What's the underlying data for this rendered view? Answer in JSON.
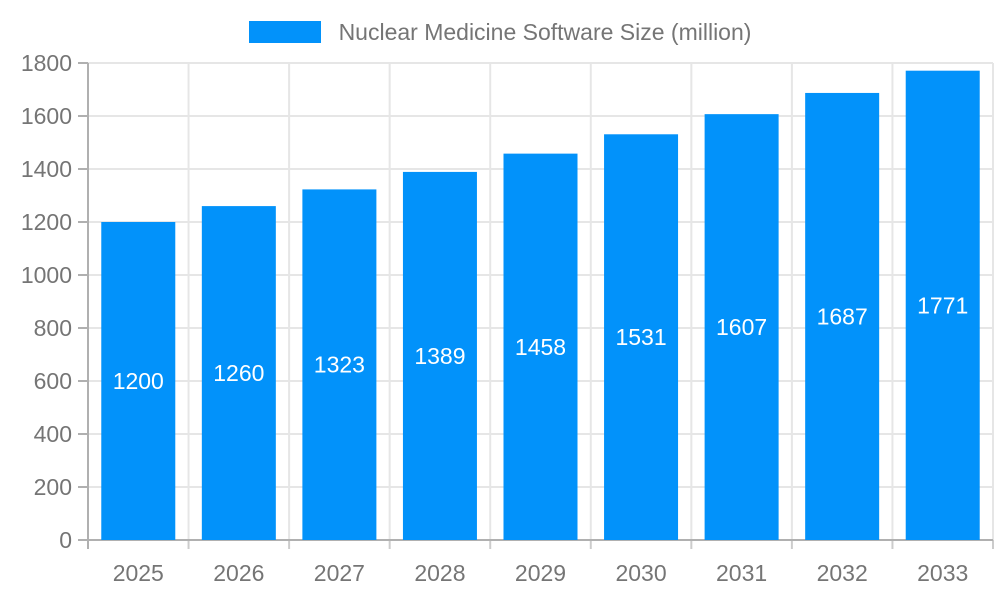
{
  "chart_data": {
    "type": "bar",
    "title": "Nuclear Medicine Software Size (million)",
    "legend": {
      "position": "top",
      "entries": [
        "Nuclear Medicine Software Size (million)"
      ]
    },
    "categories": [
      "2025",
      "2026",
      "2027",
      "2028",
      "2029",
      "2030",
      "2031",
      "2032",
      "2033"
    ],
    "values": [
      1200,
      1260,
      1323,
      1389,
      1458,
      1531,
      1607,
      1687,
      1771
    ],
    "value_labels": [
      "1200",
      "1260",
      "1323",
      "1389",
      "1458",
      "1531",
      "1607",
      "1687",
      "1771"
    ],
    "xlabel": "",
    "ylabel": "",
    "ylim": [
      0,
      1800
    ],
    "yticks": [
      0,
      200,
      400,
      600,
      800,
      1000,
      1200,
      1400,
      1600,
      1800
    ],
    "grid": true,
    "colors": {
      "bar": "#0292fa",
      "axis_text": "#757575",
      "gridline": "#e6e6e6",
      "axis_line": "#b0b0b0",
      "x_tick": "#cccccc",
      "value_label": "#ffffff",
      "background": "#ffffff"
    }
  }
}
